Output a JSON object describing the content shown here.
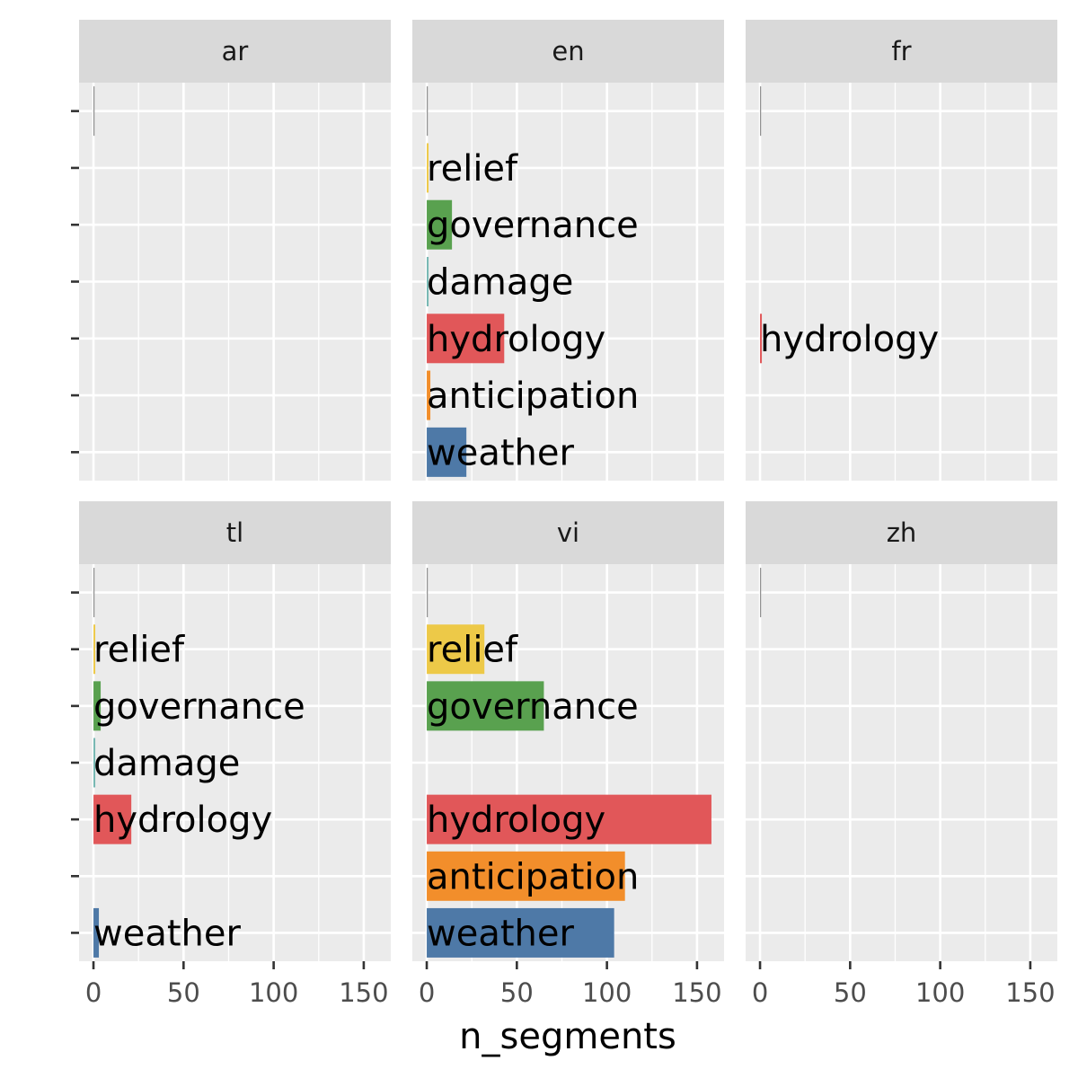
{
  "chart_data": {
    "type": "bar",
    "orientation": "horizontal",
    "xlabel": "n_segments",
    "ylabel": "",
    "xlim": [
      -8,
      165
    ],
    "xticks": [
      0,
      50,
      100,
      150
    ],
    "grid": true,
    "legend": "none",
    "categories": [
      "",
      "relief",
      "governance",
      "damage",
      "hydrology",
      "anticipation",
      "weather"
    ],
    "category_colors": {
      "": "#8c8c8c",
      "relief": "#edc948",
      "governance": "#59a14f",
      "damage": "#76b7b2",
      "hydrology": "#e15759",
      "anticipation": "#f28e2b",
      "weather": "#4e79a7"
    },
    "panels": [
      {
        "facet": "ar",
        "values": [
          0.3,
          null,
          null,
          null,
          null,
          null,
          null
        ]
      },
      {
        "facet": "en",
        "values": [
          0.3,
          1,
          14,
          1,
          43,
          2,
          22
        ]
      },
      {
        "facet": "fr",
        "values": [
          0.3,
          null,
          null,
          null,
          1,
          null,
          null
        ]
      },
      {
        "facet": "tl",
        "values": [
          0.3,
          1,
          4,
          1,
          21,
          null,
          3
        ]
      },
      {
        "facet": "vi",
        "values": [
          0.3,
          32,
          65,
          null,
          158,
          110,
          104
        ]
      },
      {
        "facet": "zh",
        "values": [
          0.3,
          null,
          null,
          null,
          null,
          null,
          null
        ]
      }
    ]
  }
}
